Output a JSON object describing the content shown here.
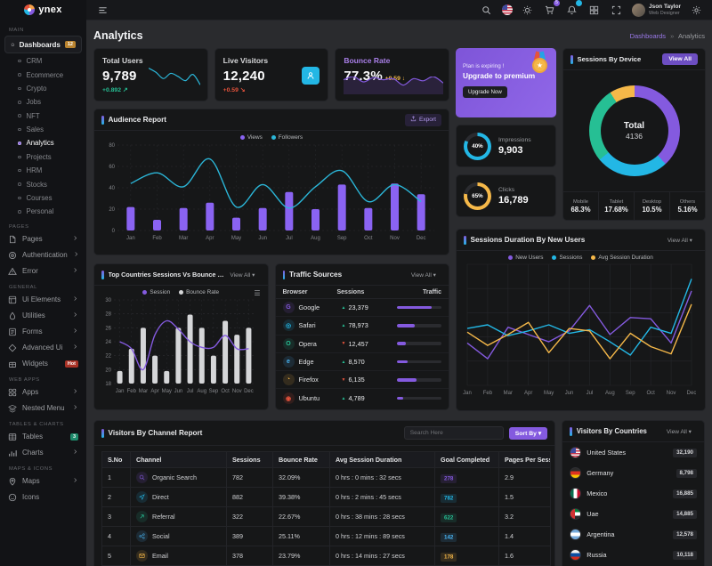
{
  "brand": {
    "logo_text": "ynex"
  },
  "header": {
    "cart_badge": "5",
    "user": {
      "name": "Json Taylor",
      "role": "Web Designer"
    }
  },
  "page": {
    "title": "Analytics",
    "breadcrumb": {
      "parent": "Dashboards",
      "sep": "»",
      "current": "Analytics"
    }
  },
  "sidebar": {
    "sections": [
      {
        "label": "MAIN",
        "items": [
          {
            "label": "Dashboards",
            "icon": "home",
            "badge": "12",
            "badge_bg": "#b9832f",
            "active": true,
            "children": [
              "CRM",
              "Ecommerce",
              "Crypto",
              "Jobs",
              "NFT",
              "Sales",
              "Analytics",
              "Projects",
              "HRM",
              "Stocks",
              "Courses",
              "Personal"
            ],
            "active_child": "Analytics"
          }
        ]
      },
      {
        "label": "PAGES",
        "items": [
          {
            "label": "Pages",
            "icon": "file",
            "chevron": true
          },
          {
            "label": "Authentication",
            "icon": "auth",
            "chevron": true
          },
          {
            "label": "Error",
            "icon": "error",
            "chevron": true
          }
        ]
      },
      {
        "label": "GENERAL",
        "items": [
          {
            "label": "Ui Elements",
            "icon": "ui",
            "chevron": true
          },
          {
            "label": "Utilities",
            "icon": "utils",
            "chevron": true
          },
          {
            "label": "Forms",
            "icon": "forms",
            "chevron": true
          },
          {
            "label": "Advanced Ui",
            "icon": "advui",
            "chevron": true
          },
          {
            "label": "Widgets",
            "icon": "widgets",
            "badge": "Hot",
            "badge_bg": "#a93226"
          }
        ]
      },
      {
        "label": "WEB APPS",
        "items": [
          {
            "label": "Apps",
            "icon": "apps",
            "chevron": true
          },
          {
            "label": "Nested Menu",
            "icon": "nested",
            "chevron": true
          }
        ]
      },
      {
        "label": "TABLES & CHARTS",
        "items": [
          {
            "label": "Tables",
            "icon": "tables",
            "badge": "3",
            "badge_bg": "#1e8a6b"
          },
          {
            "label": "Charts",
            "icon": "charts",
            "chevron": true
          }
        ]
      },
      {
        "label": "MAPS & ICONS",
        "items": [
          {
            "label": "Maps",
            "icon": "maps",
            "chevron": true
          },
          {
            "label": "Icons",
            "icon": "icons"
          }
        ]
      }
    ]
  },
  "stats": {
    "total_users": {
      "title": "Total Users",
      "value": "9,789",
      "delta": "+0.892",
      "delta_color": "#26bf94",
      "arrow": "↗",
      "spark": [
        20,
        16,
        10,
        15,
        12,
        8,
        14,
        4
      ],
      "spark_color": "#2bb6d8"
    },
    "live_visitors": {
      "title": "Live Visitors",
      "value": "12,240",
      "delta": "+0.59",
      "delta_color": "#e6533c",
      "arrow": "↘"
    },
    "bounce_rate": {
      "title": "Bounce Rate",
      "value": "77.3%",
      "delta": "+0.59",
      "delta_color": "#f5b849",
      "arrow": "↓",
      "title_color": "#a97fe8",
      "spark": [
        12,
        15,
        10,
        14,
        12,
        13,
        7,
        13,
        11,
        15,
        9
      ],
      "spark_color": "#845adf"
    }
  },
  "upgrade": {
    "line1": "Plan is expiring !",
    "line2": "Upgrade to premium",
    "button": "Upgrade Now"
  },
  "impressions": {
    "label": "Impressions",
    "value": "9,903",
    "pct": "40%",
    "ring_fill": 82,
    "color": "#23b7e5"
  },
  "clicks": {
    "label": "Clicks",
    "value": "16,789",
    "pct": "65%",
    "ring_fill": 78,
    "color": "#f5b849"
  },
  "device": {
    "title": "Sessions By Device",
    "action": "View All",
    "total_label": "Total",
    "total_value": "4136",
    "segments": [
      {
        "color": "#845adf",
        "pct": 38
      },
      {
        "color": "#23b7e5",
        "pct": 26
      },
      {
        "color": "#26bf94",
        "pct": 27
      },
      {
        "color": "#f5b849",
        "pct": 9
      }
    ],
    "legend": [
      {
        "label": "Mobile",
        "value": "68.3%"
      },
      {
        "label": "Tablet",
        "value": "17.68%"
      },
      {
        "label": "Desktop",
        "value": "10.5%"
      },
      {
        "label": "Others",
        "value": "5.16%"
      }
    ]
  },
  "audience": {
    "title": "Audience Report",
    "action": "Export",
    "chart_data": {
      "type": "mixed",
      "categories": [
        "Jan",
        "Feb",
        "Mar",
        "Apr",
        "May",
        "Jun",
        "Jul",
        "Aug",
        "Sep",
        "Oct",
        "Nov",
        "Dec"
      ],
      "series": [
        {
          "name": "Views",
          "type": "bar",
          "color": "#8a63f2",
          "values": [
            22,
            10,
            21,
            26,
            12,
            21,
            36,
            20,
            43,
            21,
            44,
            34
          ]
        },
        {
          "name": "Followers",
          "type": "line",
          "color": "#2bb6d8",
          "values": [
            44,
            54,
            41,
            67,
            22,
            43,
            21,
            41,
            56,
            27,
            43,
            27
          ]
        }
      ],
      "ylim": [
        0,
        80
      ],
      "yticks": [
        0,
        20,
        40,
        60,
        80
      ]
    }
  },
  "top_countries": {
    "title": "Top Countries Sessions Vs Bounce Rate",
    "action": "View All ▾",
    "chart_data": {
      "type": "mixed",
      "categories": [
        "Jan",
        "Feb",
        "Mar",
        "Apr",
        "May",
        "Jun",
        "Jul",
        "Aug",
        "Sep",
        "Oct",
        "Nov",
        "Dec"
      ],
      "series": [
        {
          "name": "Bounce Rate",
          "type": "bar",
          "color": "#d5d6d8",
          "values": [
            19.8,
            23,
            26,
            22,
            19.8,
            26,
            27.9,
            26,
            22,
            27,
            25,
            26
          ]
        },
        {
          "name": "Session",
          "type": "line",
          "color": "#845adf",
          "values": [
            24,
            23,
            20,
            25,
            27,
            25.8,
            24,
            23.2,
            23.2,
            24.9,
            23,
            23
          ]
        }
      ],
      "legend_order": [
        "Session",
        "Bounce Rate"
      ],
      "ylim": [
        18,
        30
      ],
      "yticks": [
        18,
        20,
        22,
        24,
        26,
        28,
        30
      ]
    }
  },
  "traffic": {
    "title": "Traffic Sources",
    "action": "View All ▾",
    "columns": [
      "Browser",
      "Sessions",
      "Traffic"
    ],
    "rows": [
      {
        "browser": "Google",
        "glyph": "G",
        "color": "#845adf",
        "dir": "up",
        "sessions": "23,379",
        "traffic_pct": 78
      },
      {
        "browser": "Safari",
        "glyph": "◎",
        "color": "#23b7e5",
        "dir": "up",
        "sessions": "78,973",
        "traffic_pct": 40
      },
      {
        "browser": "Opera",
        "glyph": "O",
        "color": "#26bf94",
        "dir": "down",
        "sessions": "12,457",
        "traffic_pct": 20
      },
      {
        "browser": "Edge",
        "glyph": "e",
        "color": "#49b6f5",
        "dir": "up",
        "sessions": "8,570",
        "traffic_pct": 24
      },
      {
        "browser": "Firefox",
        "glyph": "◔",
        "color": "#f5b849",
        "dir": "down",
        "sessions": "6,135",
        "traffic_pct": 44
      },
      {
        "browser": "Ubuntu",
        "glyph": "◉",
        "color": "#e6533c",
        "dir": "up",
        "sessions": "4,789",
        "traffic_pct": 14
      }
    ]
  },
  "sessions_duration": {
    "title": "Sessions Duration By New Users",
    "action": "View All ▾",
    "chart_data": {
      "type": "line",
      "categories": [
        "Jan",
        "Feb",
        "Mar",
        "Apr",
        "May",
        "Jun",
        "Jul",
        "Aug",
        "Sep",
        "Oct",
        "Nov",
        "Dec"
      ],
      "series": [
        {
          "name": "New Users",
          "color": "#845adf",
          "values": [
            35,
            22,
            48,
            42,
            36,
            45,
            66,
            42,
            56,
            55,
            35,
            78
          ]
        },
        {
          "name": "Sessions",
          "color": "#23b7e5",
          "values": [
            47,
            50,
            41,
            45,
            50,
            43,
            46,
            36,
            25,
            48,
            43,
            88
          ]
        },
        {
          "name": "Avg Session Duration",
          "color": "#f5b849",
          "values": [
            44,
            33,
            42,
            52,
            27,
            47,
            45,
            22,
            43,
            32,
            26,
            67
          ]
        }
      ],
      "ylim": [
        0,
        100
      ]
    }
  },
  "channel_report": {
    "title": "Visitors By Channel Report",
    "search_placeholder": "Search Here",
    "sort_label": "Sort By ▾",
    "columns": [
      "S.No",
      "Channel",
      "Sessions",
      "Bounce Rate",
      "Avg Session Duration",
      "Goal Completed",
      "Pages Per Session"
    ],
    "rows": [
      {
        "sno": "1",
        "channel": "Organic Search",
        "icon": "search",
        "color": "#845adf",
        "sessions": "782",
        "bounce": "32.09%",
        "avg": "0 hrs : 0 mins : 32 secs",
        "goal": "278",
        "pages": "2.9"
      },
      {
        "sno": "2",
        "channel": "Direct",
        "icon": "direct",
        "color": "#23b7e5",
        "sessions": "882",
        "bounce": "39.38%",
        "avg": "0 hrs : 2 mins : 45 secs",
        "goal": "782",
        "pages": "1.5"
      },
      {
        "sno": "3",
        "channel": "Referral",
        "icon": "referral",
        "color": "#26bf94",
        "sessions": "322",
        "bounce": "22.67%",
        "avg": "0 hrs : 38 mins : 28 secs",
        "goal": "622",
        "pages": "3.2"
      },
      {
        "sno": "4",
        "channel": "Social",
        "icon": "social",
        "color": "#49b6f5",
        "sessions": "389",
        "bounce": "25.11%",
        "avg": "0 hrs : 12 mins : 89 secs",
        "goal": "142",
        "pages": "1.4"
      },
      {
        "sno": "5",
        "channel": "Email",
        "icon": "email",
        "color": "#f5b849",
        "sessions": "378",
        "bounce": "23.79%",
        "avg": "0 hrs : 14 mins : 27 secs",
        "goal": "178",
        "pages": "1.6"
      }
    ]
  },
  "countries": {
    "title": "Visitors By Countries",
    "action": "View All ▾",
    "rows": [
      {
        "name": "United States",
        "value": "32,190",
        "flag": "us"
      },
      {
        "name": "Germany",
        "value": "8,798",
        "flag": "de"
      },
      {
        "name": "Mexico",
        "value": "16,885",
        "flag": "mx"
      },
      {
        "name": "Uae",
        "value": "14,885",
        "flag": "ae"
      },
      {
        "name": "Argentina",
        "value": "12,578",
        "flag": "ar"
      },
      {
        "name": "Russia",
        "value": "10,118",
        "flag": "ru"
      },
      {
        "name": "",
        "value": "",
        "flag": "cn"
      }
    ]
  }
}
